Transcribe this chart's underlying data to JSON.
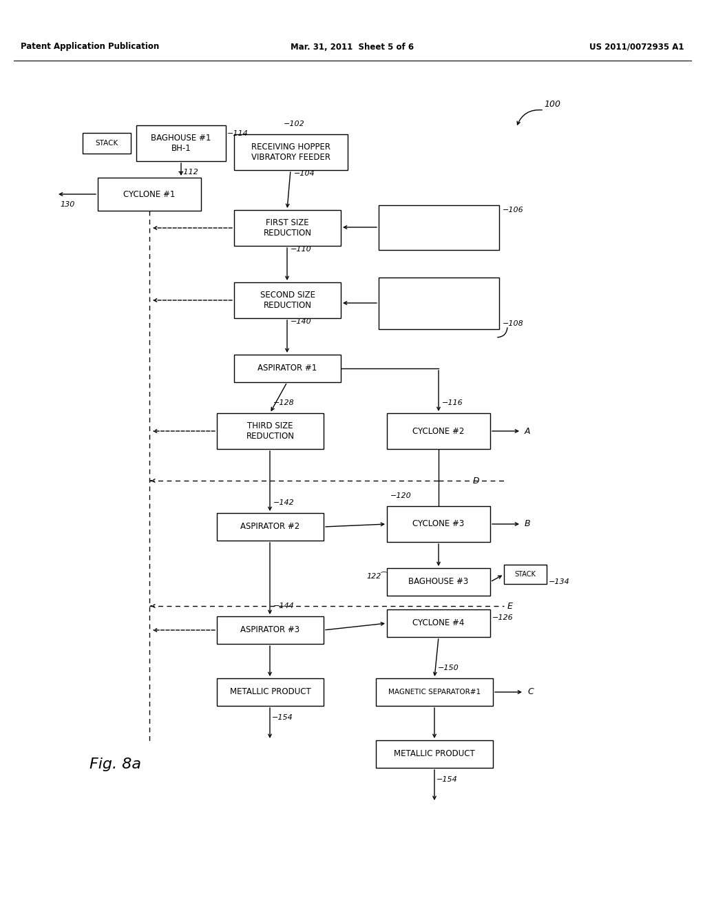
{
  "bg_color": "#ffffff",
  "header_left": "Patent Application Publication",
  "header_mid": "Mar. 31, 2011  Sheet 5 of 6",
  "header_right": "US 2011/0072935 A1",
  "fig_label": "Fig. 8a"
}
